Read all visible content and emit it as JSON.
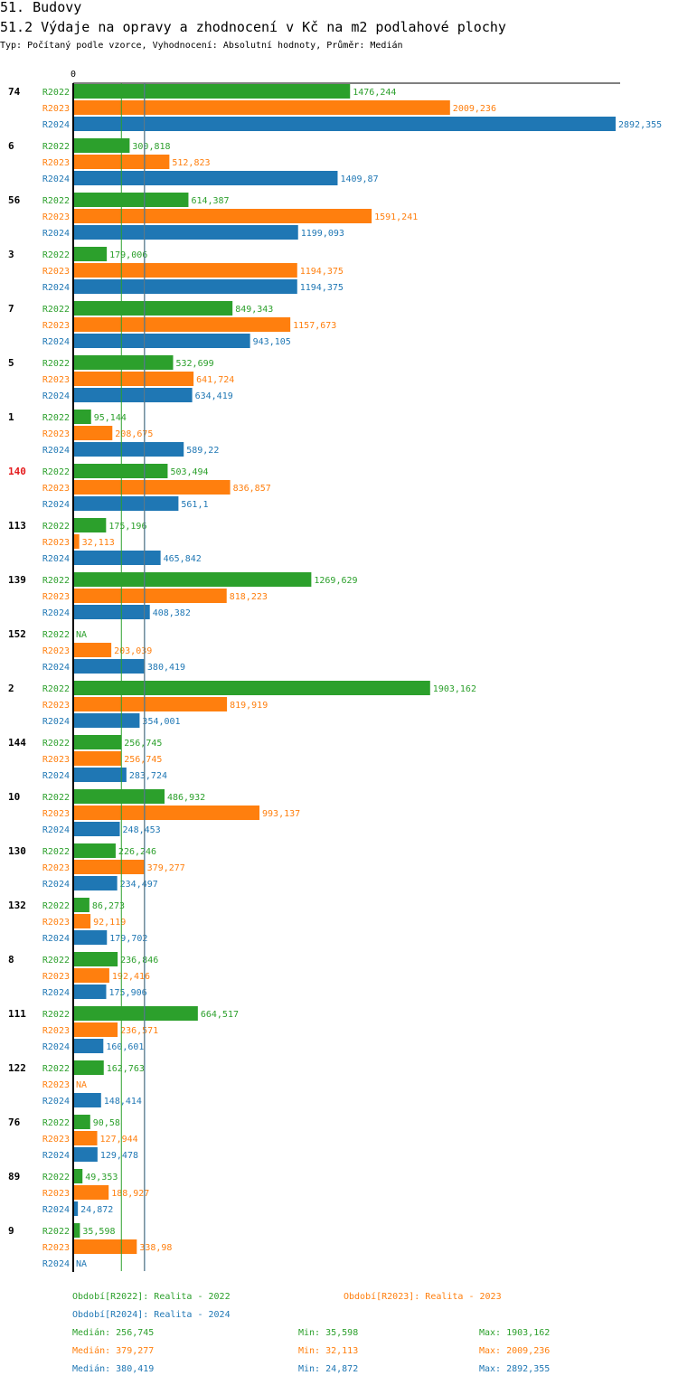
{
  "section_title": "51. Budovy",
  "chart_title": "51.2 Výdaje na opravy a zhodnocení v Kč na m2 podlahové plochy",
  "chart_subtitle": "Typ: Počítaný podle vzorce, Vyhodnocení: Absolutní hodnoty, Průměr: Medián",
  "colors": {
    "R2022": "#2ca02c",
    "R2023": "#ff7f0e",
    "R2024": "#1f77b4",
    "highlight": "#e41a1c"
  },
  "chart_data": {
    "type": "bar",
    "orientation": "horizontal",
    "axis_zero_label": "0",
    "xlim": [
      0,
      3000
    ],
    "series_names": [
      "R2022",
      "R2023",
      "R2024"
    ],
    "highlighted_category": "140",
    "categories": [
      {
        "id": "74",
        "values": [
          "1476,244",
          "2009,236",
          "2892,355"
        ]
      },
      {
        "id": "6",
        "values": [
          "300,818",
          "512,823",
          "1409,87"
        ]
      },
      {
        "id": "56",
        "values": [
          "614,387",
          "1591,241",
          "1199,093"
        ]
      },
      {
        "id": "3",
        "values": [
          "179,006",
          "1194,375",
          "1194,375"
        ]
      },
      {
        "id": "7",
        "values": [
          "849,343",
          "1157,673",
          "943,105"
        ]
      },
      {
        "id": "5",
        "values": [
          "532,699",
          "641,724",
          "634,419"
        ]
      },
      {
        "id": "1",
        "values": [
          "95,144",
          "208,675",
          "589,22"
        ]
      },
      {
        "id": "140",
        "values": [
          "503,494",
          "836,857",
          "561,1"
        ]
      },
      {
        "id": "113",
        "values": [
          "175,196",
          "32,113",
          "465,842"
        ]
      },
      {
        "id": "139",
        "values": [
          "1269,629",
          "818,223",
          "408,382"
        ]
      },
      {
        "id": "152",
        "values": [
          "NA",
          "203,039",
          "380,419"
        ]
      },
      {
        "id": "2",
        "values": [
          "1903,162",
          "819,919",
          "354,001"
        ]
      },
      {
        "id": "144",
        "values": [
          "256,745",
          "256,745",
          "283,724"
        ]
      },
      {
        "id": "10",
        "values": [
          "486,932",
          "993,137",
          "248,453"
        ]
      },
      {
        "id": "130",
        "values": [
          "226,246",
          "379,277",
          "234,497"
        ]
      },
      {
        "id": "132",
        "values": [
          "86,273",
          "92,119",
          "179,702"
        ]
      },
      {
        "id": "8",
        "values": [
          "236,846",
          "192,416",
          "175,906"
        ]
      },
      {
        "id": "111",
        "values": [
          "664,517",
          "236,571",
          "160,601"
        ]
      },
      {
        "id": "122",
        "values": [
          "162,763",
          "NA",
          "148,414"
        ]
      },
      {
        "id": "76",
        "values": [
          "90,58",
          "127,944",
          "129,478"
        ]
      },
      {
        "id": "89",
        "values": [
          "49,353",
          "188,927",
          "24,872"
        ]
      },
      {
        "id": "9",
        "values": [
          "35,598",
          "338,98",
          "NA"
        ]
      }
    ],
    "median_lines": [
      {
        "series": "R2022",
        "value": 256.745
      },
      {
        "series": "R2023",
        "value": 379.277
      },
      {
        "series": "R2024",
        "value": 380.419
      }
    ]
  },
  "legend": {
    "entries": [
      {
        "series": "R2022",
        "label": "Období[R2022]: Realita - 2022"
      },
      {
        "series": "R2023",
        "label": "Období[R2023]: Realita - 2023"
      },
      {
        "series": "R2024",
        "label": "Období[R2024]: Realita - 2024"
      }
    ],
    "stats": [
      {
        "series": "R2022",
        "median": "Medián: 256,745",
        "min": "Min: 35,598",
        "max": "Max: 1903,162"
      },
      {
        "series": "R2023",
        "median": "Medián: 379,277",
        "min": "Min: 32,113",
        "max": "Max: 2009,236"
      },
      {
        "series": "R2024",
        "median": "Medián: 380,419",
        "min": "Min: 24,872",
        "max": "Max: 2892,355"
      }
    ]
  }
}
